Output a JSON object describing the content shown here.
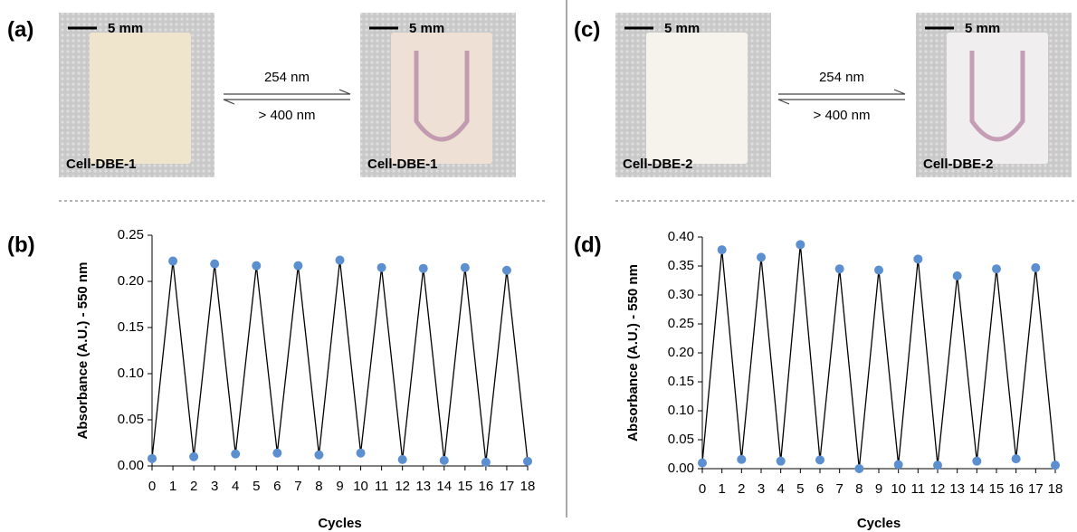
{
  "panels": [
    {
      "label": "(a)",
      "forward": "254 nm",
      "reverse": "> 400 nm",
      "left": {
        "scale": "5 mm",
        "name": "Cell-DBE-1"
      },
      "right": {
        "scale": "5 mm",
        "name": "Cell-DBE-1"
      }
    },
    {
      "label": "(c)",
      "forward": "254 nm",
      "reverse": "> 400 nm",
      "left": {
        "scale": "5 mm",
        "name": "Cell-DBE-2"
      },
      "right": {
        "scale": "5 mm",
        "name": "Cell-DBE-2"
      }
    }
  ],
  "chart_data": [
    {
      "type": "line",
      "panel": "(b)",
      "x_label": "Cycles",
      "y_label": "Absorbance (A.U.) - 550 nm",
      "x": [
        0,
        1,
        2,
        3,
        4,
        5,
        6,
        7,
        8,
        9,
        10,
        11,
        12,
        13,
        14,
        15,
        16,
        17,
        18
      ],
      "series": [
        {
          "name": "Absorbance",
          "color": "#000000",
          "marker_color": "#5b8fd0",
          "values": [
            0.008,
            0.222,
            0.01,
            0.219,
            0.013,
            0.217,
            0.014,
            0.217,
            0.012,
            0.223,
            0.014,
            0.215,
            0.007,
            0.214,
            0.006,
            0.215,
            0.004,
            0.212,
            0.005
          ]
        }
      ],
      "xlim": [
        0,
        18
      ],
      "xticks": [
        0,
        1,
        2,
        3,
        4,
        5,
        6,
        7,
        8,
        9,
        10,
        11,
        12,
        13,
        14,
        15,
        16,
        17,
        18
      ],
      "ylim": [
        0,
        0.25
      ],
      "yticks": [
        {
          "value": 0,
          "label": "0.00"
        },
        {
          "value": 0.05,
          "label": "0.05"
        },
        {
          "value": 0.1,
          "label": "0.10"
        },
        {
          "value": 0.15,
          "label": "0.15"
        },
        {
          "value": 0.2,
          "label": "0.20"
        },
        {
          "value": 0.25,
          "label": "0.25"
        }
      ]
    },
    {
      "type": "line",
      "panel": "(d)",
      "x_label": "Cycles",
      "y_label": "Absorbance (A.U.) - 550 nm",
      "x": [
        0,
        1,
        2,
        3,
        4,
        5,
        6,
        7,
        8,
        9,
        10,
        11,
        12,
        13,
        14,
        15,
        16,
        17,
        18
      ],
      "series": [
        {
          "name": "Absorbance",
          "color": "#000000",
          "marker_color": "#5b8fd0",
          "values": [
            0.01,
            0.378,
            0.016,
            0.365,
            0.013,
            0.387,
            0.015,
            0.345,
            0.0,
            0.343,
            0.007,
            0.362,
            0.006,
            0.333,
            0.013,
            0.345,
            0.017,
            0.347,
            0.006
          ]
        }
      ],
      "xlim": [
        0,
        18
      ],
      "xticks": [
        0,
        1,
        2,
        3,
        4,
        5,
        6,
        7,
        8,
        9,
        10,
        11,
        12,
        13,
        14,
        15,
        16,
        17,
        18
      ],
      "ylim": [
        0,
        0.4
      ],
      "yticks": [
        {
          "value": 0,
          "label": "0.00"
        },
        {
          "value": 0.05,
          "label": "0.05"
        },
        {
          "value": 0.1,
          "label": "0.10"
        },
        {
          "value": 0.15,
          "label": "0.15"
        },
        {
          "value": 0.2,
          "label": "0.20"
        },
        {
          "value": 0.25,
          "label": "0.25"
        },
        {
          "value": 0.3,
          "label": "0.30"
        },
        {
          "value": 0.35,
          "label": "0.35"
        },
        {
          "value": 0.4,
          "label": "0.40"
        }
      ]
    }
  ]
}
